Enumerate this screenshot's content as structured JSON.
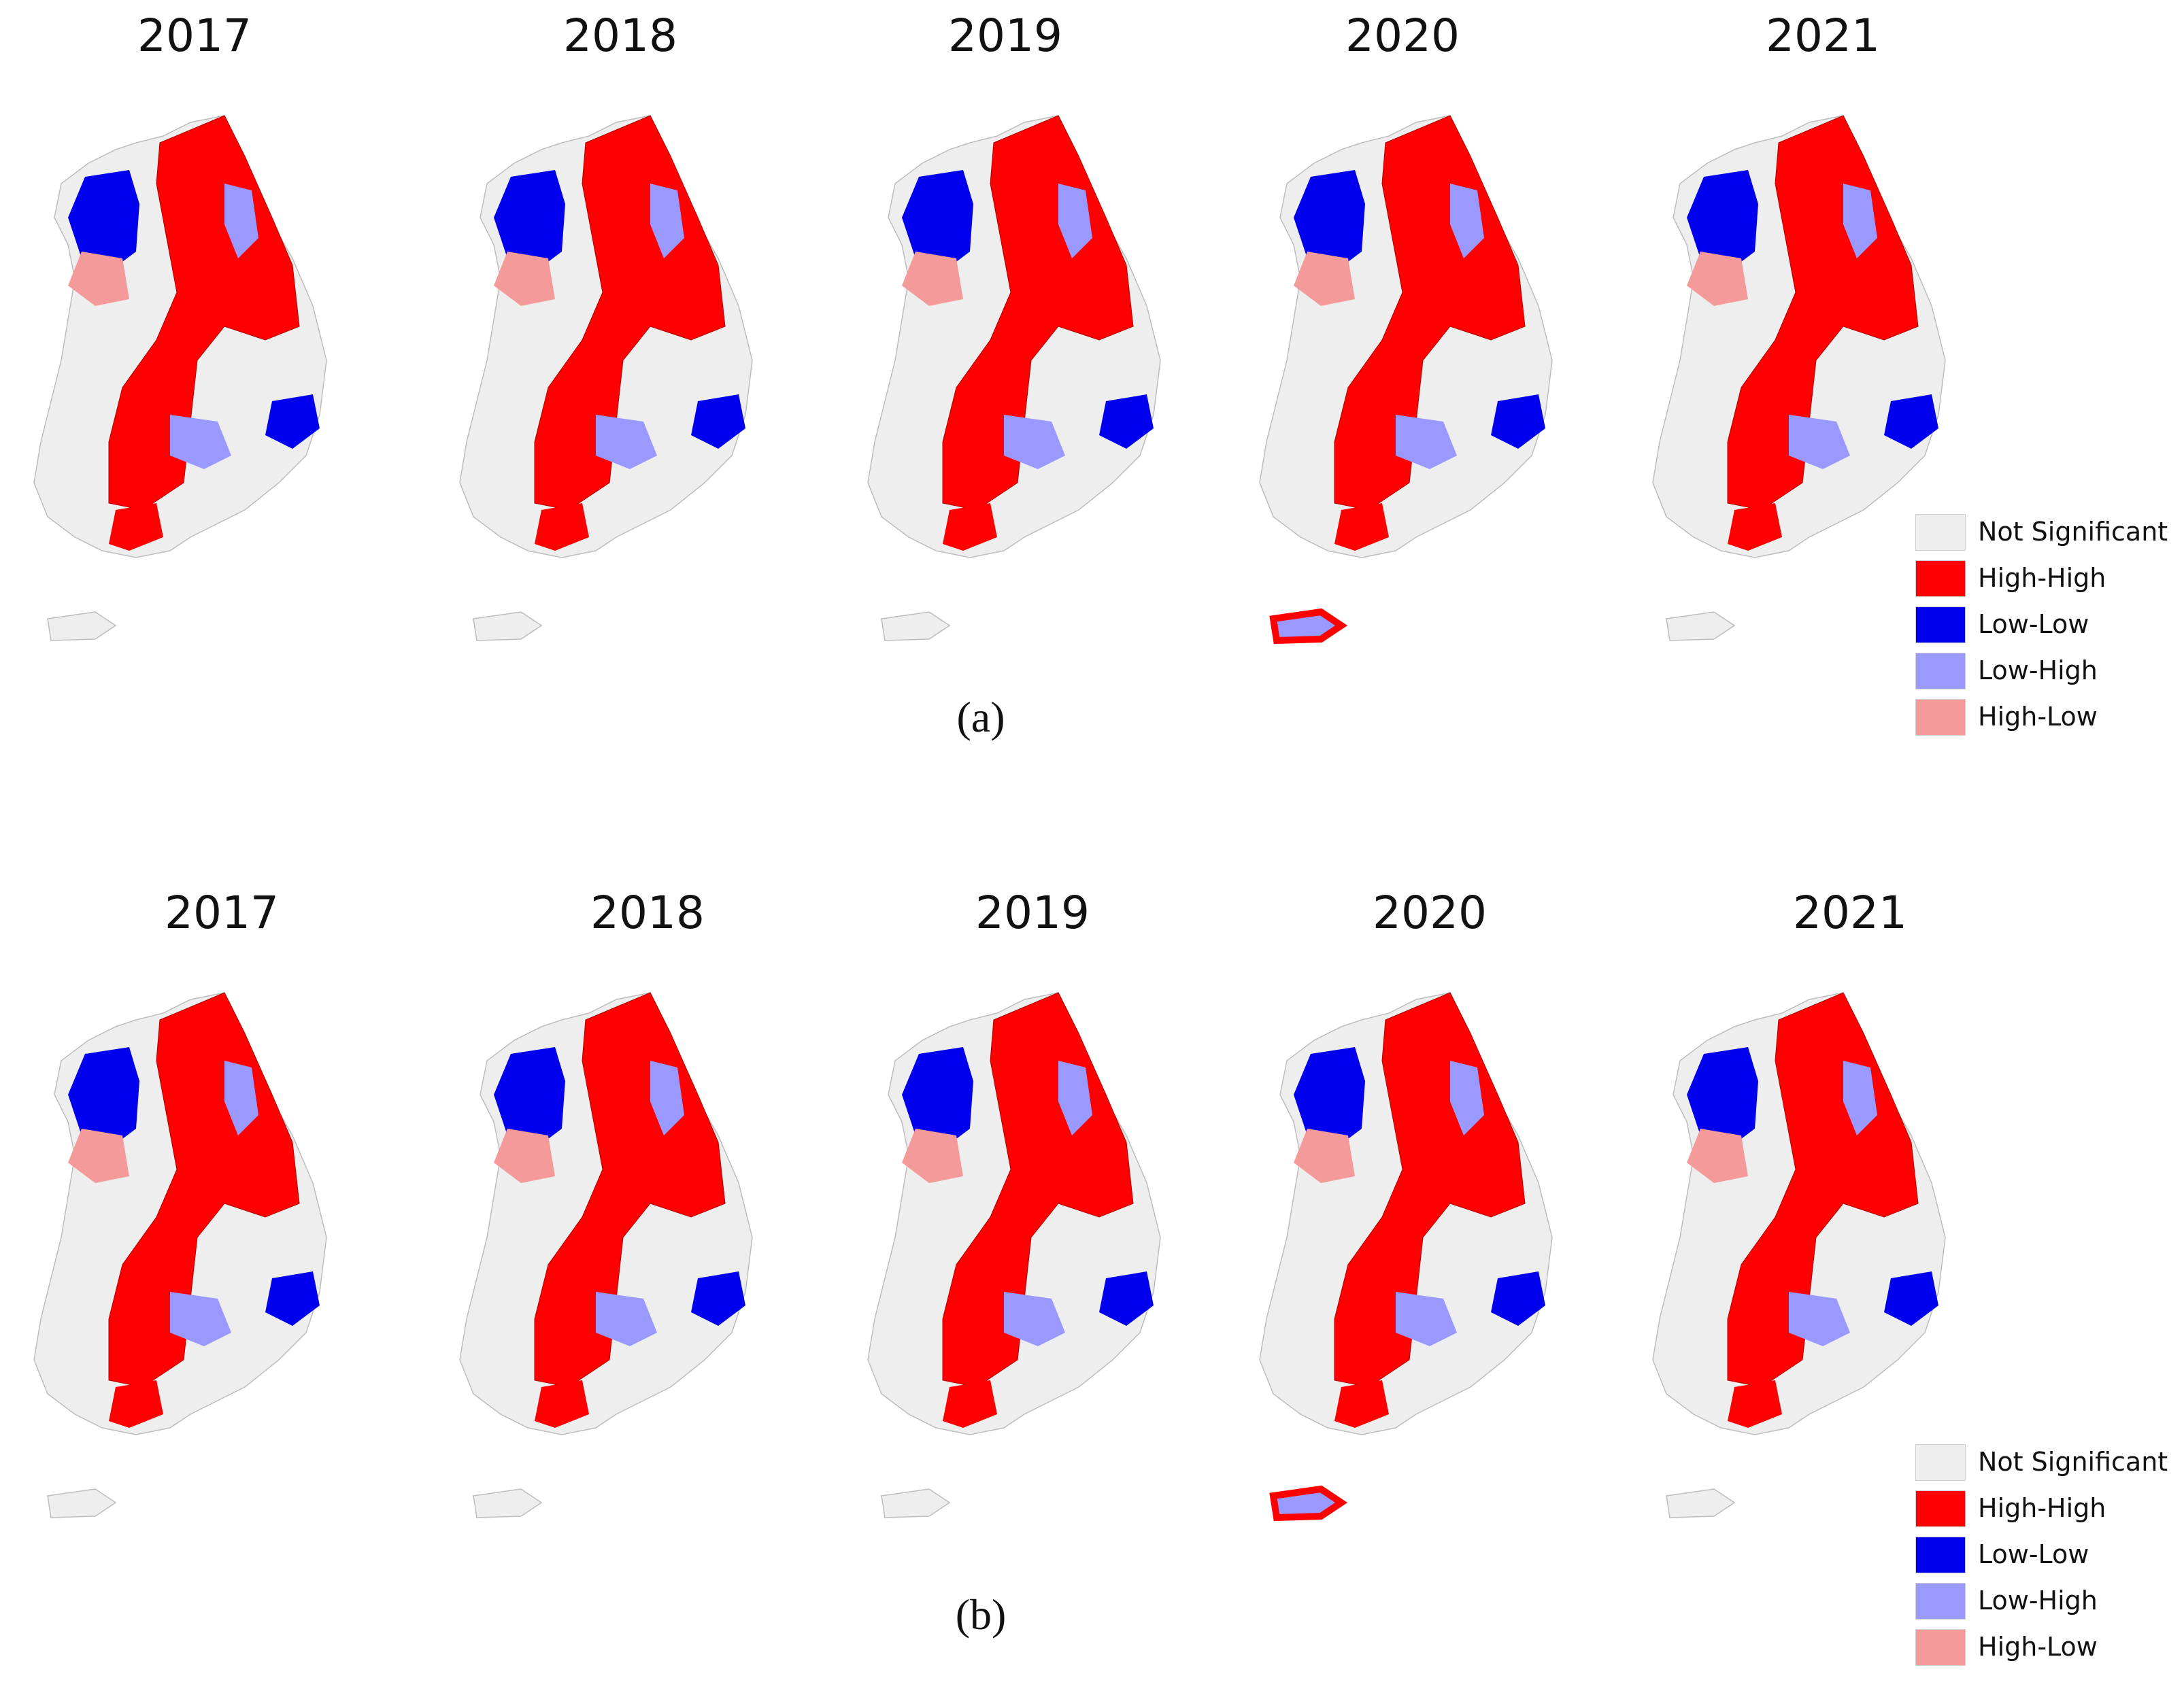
{
  "panels": [
    {
      "caption": "(a)",
      "years": [
        "2017",
        "2018",
        "2019",
        "2020",
        "2021"
      ],
      "jeju_class": [
        "ns",
        "ns",
        "ns",
        "lh_hh",
        "ns"
      ]
    },
    {
      "caption": "(b)",
      "years": [
        "2017",
        "2018",
        "2019",
        "2020",
        "2021"
      ],
      "jeju_class": [
        "ns",
        "ns",
        "ns",
        "lh_hh",
        "ns"
      ]
    }
  ],
  "legend": [
    {
      "label": "Not Significant",
      "color": "#eeeeee"
    },
    {
      "label": "High-High",
      "color": "#ff0000"
    },
    {
      "label": "Low-Low",
      "color": "#0000ee"
    },
    {
      "label": "Low-High",
      "color": "#9999ff"
    },
    {
      "label": "High-Low",
      "color": "#f59a9a"
    }
  ],
  "colors": {
    "not_significant": "#eeeeee",
    "high_high": "#ff0000",
    "low_low": "#0000ee",
    "low_high": "#9999ff",
    "high_low": "#f59a9a",
    "border": "#bdbdbd"
  }
}
